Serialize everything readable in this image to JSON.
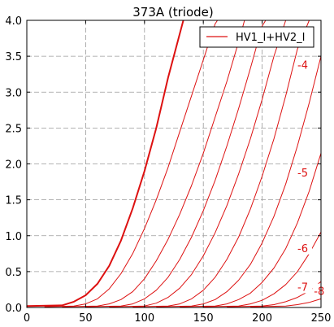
{
  "chart_data": {
    "type": "line",
    "title": "373A (triode)",
    "xlabel": "",
    "ylabel": "",
    "xlim": [
      0,
      250
    ],
    "ylim": [
      0,
      4.0
    ],
    "xticks": [
      0,
      50,
      100,
      150,
      200,
      250
    ],
    "yticks": [
      0.0,
      0.5,
      1.0,
      1.5,
      2.0,
      2.5,
      3.0,
      3.5,
      4.0
    ],
    "grid": true,
    "legend": {
      "position": "top-right",
      "entries": [
        "HV1_I+HV2_I"
      ]
    },
    "line_color": "#dd1111",
    "series": [
      {
        "x": [
          0,
          30,
          40,
          50,
          60,
          70,
          80,
          90,
          100,
          110,
          120,
          133
        ],
        "y": [
          0.02,
          0.03,
          0.08,
          0.17,
          0.33,
          0.58,
          0.93,
          1.38,
          1.9,
          2.5,
          3.2,
          4.0
        ]
      },
      {
        "x": [
          15,
          40,
          50,
          60,
          70,
          80,
          90,
          100,
          110,
          120,
          130,
          140,
          150,
          160,
          162
        ],
        "y": [
          0.01,
          0.02,
          0.05,
          0.12,
          0.26,
          0.47,
          0.75,
          1.1,
          1.5,
          1.95,
          2.45,
          2.95,
          3.45,
          3.95,
          4.0
        ]
      },
      {
        "x": [
          30,
          60,
          70,
          80,
          90,
          100,
          110,
          120,
          130,
          140,
          150,
          160,
          170,
          180,
          185
        ],
        "y": [
          0.01,
          0.02,
          0.05,
          0.11,
          0.22,
          0.4,
          0.65,
          0.95,
          1.3,
          1.7,
          2.15,
          2.65,
          3.15,
          3.7,
          4.0
        ]
      },
      {
        "x": [
          50,
          80,
          90,
          100,
          110,
          120,
          130,
          140,
          150,
          160,
          170,
          180,
          190,
          200,
          203
        ],
        "y": [
          0.01,
          0.02,
          0.05,
          0.12,
          0.24,
          0.42,
          0.67,
          0.98,
          1.35,
          1.77,
          2.25,
          2.77,
          3.33,
          3.92,
          4.0
        ]
      },
      {
        "x": [
          70,
          100,
          110,
          120,
          130,
          140,
          150,
          160,
          170,
          180,
          190,
          200,
          210,
          220
        ],
        "y": [
          0.01,
          0.02,
          0.06,
          0.14,
          0.27,
          0.46,
          0.72,
          1.04,
          1.42,
          1.86,
          2.35,
          2.9,
          3.5,
          4.0
        ]
      },
      {
        "x": [
          90,
          120,
          130,
          140,
          150,
          160,
          170,
          180,
          190,
          200,
          210,
          220,
          230,
          240
        ],
        "y": [
          0.01,
          0.02,
          0.05,
          0.12,
          0.24,
          0.42,
          0.67,
          0.98,
          1.37,
          1.83,
          2.35,
          2.95,
          3.6,
          4.0
        ]
      },
      {
        "x": [
          110,
          140,
          150,
          160,
          170,
          180,
          190,
          200,
          210,
          220,
          230,
          240,
          250
        ],
        "y": [
          0.01,
          0.02,
          0.05,
          0.11,
          0.22,
          0.38,
          0.6,
          0.9,
          1.27,
          1.72,
          2.25,
          2.85,
          3.5
        ]
      },
      {
        "x": [
          130,
          160,
          170,
          180,
          190,
          200,
          210,
          220,
          230,
          240,
          250
        ],
        "y": [
          0.01,
          0.02,
          0.05,
          0.11,
          0.2,
          0.35,
          0.55,
          0.82,
          1.18,
          1.62,
          2.15
        ]
      },
      {
        "x": [
          150,
          180,
          190,
          200,
          210,
          220,
          230,
          240,
          250
        ],
        "y": [
          0.01,
          0.02,
          0.05,
          0.1,
          0.19,
          0.32,
          0.5,
          0.75,
          1.05
        ]
      },
      {
        "x": [
          170,
          200,
          210,
          220,
          230,
          240,
          250
        ],
        "y": [
          0.01,
          0.02,
          0.04,
          0.08,
          0.14,
          0.23,
          0.36
        ]
      },
      {
        "x": [
          190,
          220,
          230,
          240,
          250
        ],
        "y": [
          0.01,
          0.02,
          0.04,
          0.07,
          0.12
        ]
      }
    ],
    "annotations": [
      {
        "text": "-4",
        "x": 230,
        "y": 3.38
      },
      {
        "text": "-5",
        "x": 230,
        "y": 1.88
      },
      {
        "text": "-6",
        "x": 230,
        "y": 0.83
      },
      {
        "text": "-7",
        "x": 230,
        "y": 0.29
      },
      {
        "text": "-8",
        "x": 244,
        "y": 0.23
      }
    ]
  }
}
